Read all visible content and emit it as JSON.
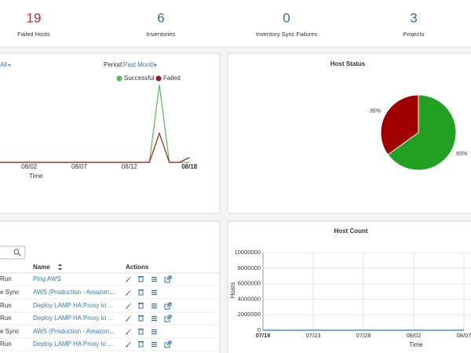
{
  "stats": [
    {
      "value": 19,
      "label": "Failed Hosts"
    },
    {
      "value": 6,
      "label": "Inventories"
    },
    {
      "value": 0,
      "label": "Inventory Sync Failures"
    },
    {
      "value": 3,
      "label": "Projects"
    }
  ],
  "job_status": {
    "type": "line",
    "filter": "All",
    "period_label": "Period:",
    "period": "Past Month",
    "x_label": "Time",
    "categories": [
      null,
      null,
      null,
      "08/02",
      null,
      null,
      null,
      null,
      "08/07",
      null,
      null,
      null,
      null,
      "08/12",
      null,
      null,
      null,
      null,
      null,
      "08/18"
    ],
    "series": [
      {
        "name": "Successful",
        "color": "#5cb85c",
        "values": [
          0,
          0,
          0,
          0,
          0,
          0,
          0,
          0,
          0,
          0,
          0,
          0,
          0,
          0,
          0,
          0,
          16,
          0,
          0,
          0
        ]
      },
      {
        "name": "Failed",
        "color": "#9b1c1c",
        "values": [
          0,
          0,
          0,
          0,
          0,
          0,
          0,
          0,
          0,
          0,
          0,
          0,
          0,
          0,
          0,
          0,
          6,
          0,
          0,
          1
        ]
      }
    ],
    "ylim": [
      0,
      17
    ]
  },
  "host_status": {
    "type": "pie",
    "title": "Host Status",
    "values": [
      65,
      35
    ],
    "value_labels": [
      "65%",
      "35%"
    ],
    "colors": [
      "#22a022",
      "#a00000"
    ]
  },
  "jobs_table": {
    "headers": [
      "Name",
      "Actions"
    ],
    "rows": [
      [
        "Run",
        "Ping AWS"
      ],
      [
        "e Sync",
        "AWS (Production - Amazon..."
      ],
      [
        "Run",
        "Deploy LAMP HA Proxy to ..."
      ],
      [
        "Run",
        "Deploy LAMP HA Proxy to ..."
      ],
      [
        "e Sync",
        "AWS (Production - Amazon..."
      ],
      [
        "Run",
        "Deploy LAMP HA Proxy to ..."
      ]
    ]
  },
  "host_count": {
    "type": "line",
    "title": "Host Count",
    "y_label": "Hosts",
    "x_label": "Time",
    "categories": [
      "07/18",
      null,
      null,
      null,
      null,
      "07/23",
      null,
      null,
      null,
      null,
      "07/28",
      null,
      null,
      null,
      null,
      "08/02",
      null,
      null,
      null,
      null,
      "08/07"
    ],
    "series": [
      {
        "color": "#1f77b4",
        "values": [
          6,
          6,
          6,
          6,
          6,
          6,
          6,
          6,
          6,
          6,
          6,
          6,
          6,
          6,
          6,
          6,
          6,
          6,
          6,
          6,
          6
        ]
      }
    ],
    "ylim": [
      0,
      10000000
    ],
    "yticks": [
      0,
      2000000,
      4000000,
      6000000,
      8000000,
      10000000
    ],
    "grid": true
  }
}
